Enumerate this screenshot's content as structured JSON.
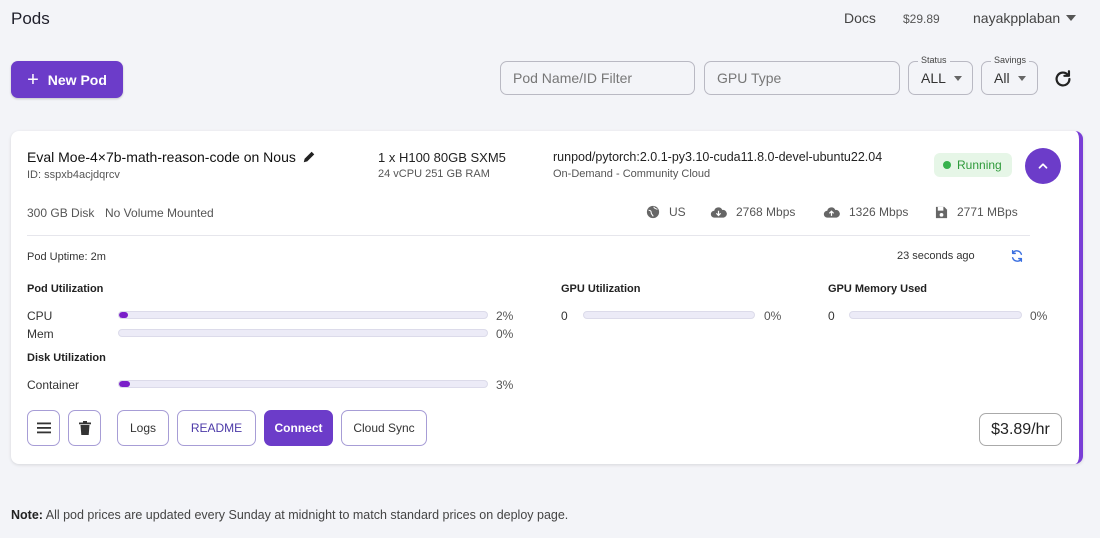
{
  "header": {
    "title": "Pods",
    "docs_label": "Docs",
    "balance": "$29.89",
    "username": "nayakpplaban"
  },
  "toolbar": {
    "new_pod_label": "New Pod",
    "pod_filter_placeholder": "Pod Name/ID Filter",
    "gpu_filter_placeholder": "GPU Type",
    "status_label": "Status",
    "status_value": "ALL",
    "savings_label": "Savings",
    "savings_value": "All"
  },
  "pod": {
    "name": "Eval Moe-4×7b-math-reason-code on Nous",
    "id": "ID: sspxb4acjdqrcv",
    "gpu": "1 x H100 80GB SXM5",
    "cpu_ram": "24 vCPU 251 GB RAM",
    "image": "runpod/pytorch:2.0.1-py3.10-cuda11.8.0-devel-ubuntu22.04",
    "cloud": "On-Demand - Community Cloud",
    "status": "Running",
    "disk": "300 GB Disk",
    "volume": "No Volume Mounted",
    "region": "US",
    "download_speed": "2768 Mbps",
    "upload_speed": "1326 Mbps",
    "disk_speed": "2771 MBps",
    "uptime": "Pod Uptime: 2m",
    "updated": "23 seconds ago",
    "price": "$3.89/hr"
  },
  "utilization": {
    "pod_title": "Pod Utilization",
    "gpu_title": "GPU Utilization",
    "gpu_mem_title": "GPU Memory Used",
    "disk_title": "Disk Utilization",
    "cpu_label": "CPU",
    "cpu_value": 0.02,
    "cpu_pct": "2%",
    "mem_label": "Mem",
    "mem_value": 0,
    "mem_pct": "0%",
    "gpu_util_index": "0",
    "gpu_util_value": 0,
    "gpu_util_pct": "0%",
    "gpu_mem_index": "0",
    "gpu_mem_value": 0,
    "gpu_mem_pct": "0%",
    "container_label": "Container",
    "container_value": 0.03,
    "container_pct": "3%"
  },
  "actions": {
    "logs": "Logs",
    "readme": "README",
    "connect": "Connect",
    "cloud_sync": "Cloud Sync"
  },
  "footer": {
    "note_label": "Note:",
    "note_text": " All pod prices are updated every Sunday at midnight to match standard prices on deploy page."
  },
  "colors": {
    "accent": "#6c3cc9",
    "running": "#37b24d",
    "bar_fill": "#7a1fc9"
  }
}
